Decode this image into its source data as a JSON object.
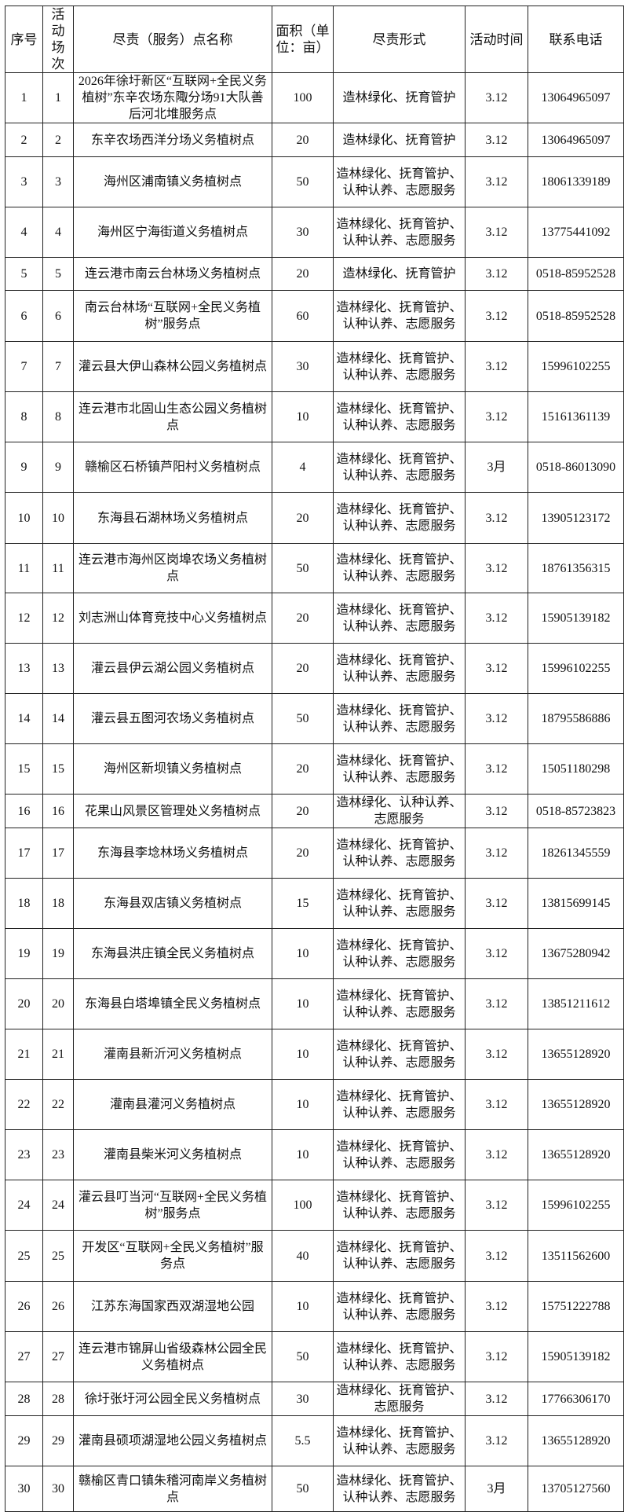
{
  "headers": [
    "序号",
    "活动场次",
    "尽责（服务）点名称",
    "面积（单位：亩）",
    "尽责形式",
    "活动时间",
    "联系电话"
  ],
  "rows": [
    [
      "1",
      "1",
      "2026年徐圩新区“互联网+全民义务植树”东辛农场东陬分场91大队善后河北堆服务点",
      "100",
      "造林绿化、抚育管护",
      "3.12",
      "13064965097"
    ],
    [
      "2",
      "2",
      "东辛农场西洋分场义务植树点",
      "20",
      "造林绿化、抚育管护",
      "3.12",
      "13064965097"
    ],
    [
      "3",
      "3",
      "海州区浦南镇义务植树点",
      "50",
      "造林绿化、抚育管护、认种认养、志愿服务",
      "3.12",
      "18061339189"
    ],
    [
      "4",
      "4",
      "海州区宁海街道义务植树点",
      "30",
      "造林绿化、抚育管护、认种认养、志愿服务",
      "3.12",
      "13775441092"
    ],
    [
      "5",
      "5",
      "连云港市南云台林场义务植树点",
      "20",
      "造林绿化、抚育管护",
      "3.12",
      "0518-85952528"
    ],
    [
      "6",
      "6",
      "南云台林场“互联网+全民义务植树”服务点",
      "60",
      "造林绿化、抚育管护、认种认养、志愿服务",
      "3.12",
      "0518-85952528"
    ],
    [
      "7",
      "7",
      "灌云县大伊山森林公园义务植树点",
      "30",
      "造林绿化、抚育管护、认种认养、志愿服务",
      "3.12",
      "15996102255"
    ],
    [
      "8",
      "8",
      "连云港市北固山生态公园义务植树点",
      "10",
      "造林绿化、抚育管护、认种认养、志愿服务",
      "3.12",
      "15161361139"
    ],
    [
      "9",
      "9",
      "赣榆区石桥镇芦阳村义务植树点",
      "4",
      "造林绿化、抚育管护、认种认养、志愿服务",
      "3月",
      "0518-86013090"
    ],
    [
      "10",
      "10",
      "东海县石湖林场义务植树点",
      "20",
      "造林绿化、抚育管护、认种认养、志愿服务",
      "3.12",
      "13905123172"
    ],
    [
      "11",
      "11",
      "连云港市海州区岗埠农场义务植树点",
      "50",
      "造林绿化、抚育管护、认种认养、志愿服务",
      "3.12",
      "18761356315"
    ],
    [
      "12",
      "12",
      "刘志洲山体育竞技中心义务植树点",
      "20",
      "造林绿化、抚育管护、认种认养、志愿服务",
      "3.12",
      "15905139182"
    ],
    [
      "13",
      "13",
      "灌云县伊云湖公园义务植树点",
      "20",
      "造林绿化、抚育管护、认种认养、志愿服务",
      "3.12",
      "15996102255"
    ],
    [
      "14",
      "14",
      "灌云县五图河农场义务植树点",
      "50",
      "造林绿化、抚育管护、认种认养、志愿服务",
      "3.12",
      "18795586886"
    ],
    [
      "15",
      "15",
      "海州区新坝镇义务植树点",
      "20",
      "造林绿化、抚育管护、认种认养、志愿服务",
      "3.12",
      "15051180298"
    ],
    [
      "16",
      "16",
      "花果山风景区管理处义务植树点",
      "20",
      "造林绿化、认种认养、志愿服务",
      "3.12",
      "0518-85723823"
    ],
    [
      "17",
      "17",
      "东海县李埝林场义务植树点",
      "20",
      "造林绿化、抚育管护、认种认养、志愿服务",
      "3.12",
      "18261345559"
    ],
    [
      "18",
      "18",
      "东海县双店镇义务植树点",
      "15",
      "造林绿化、抚育管护、认种认养、志愿服务",
      "3.12",
      "13815699145"
    ],
    [
      "19",
      "19",
      "东海县洪庄镇全民义务植树点",
      "10",
      "造林绿化、抚育管护、认种认养、志愿服务",
      "3.12",
      "13675280942"
    ],
    [
      "20",
      "20",
      "东海县白塔埠镇全民义务植树点",
      "10",
      "造林绿化、抚育管护、认种认养、志愿服务",
      "3.12",
      "13851211612"
    ],
    [
      "21",
      "21",
      "灌南县新沂河义务植树点",
      "10",
      "造林绿化、抚育管护、认种认养、志愿服务",
      "3.12",
      "13655128920"
    ],
    [
      "22",
      "22",
      "灌南县灌河义务植树点",
      "10",
      "造林绿化、抚育管护、认种认养、志愿服务",
      "3.12",
      "13655128920"
    ],
    [
      "23",
      "23",
      "灌南县柴米河义务植树点",
      "10",
      "造林绿化、抚育管护、认种认养、志愿服务",
      "3.12",
      "13655128920"
    ],
    [
      "24",
      "24",
      "灌云县叮当河“互联网+全民义务植树”服务点",
      "100",
      "造林绿化、抚育管护、认种认养、志愿服务",
      "3.12",
      "15996102255"
    ],
    [
      "25",
      "25",
      "开发区“互联网+全民义务植树”服务点",
      "40",
      "造林绿化、抚育管护、认种认养、志愿服务",
      "3.12",
      "13511562600"
    ],
    [
      "26",
      "26",
      "江苏东海国家西双湖湿地公园",
      "10",
      "造林绿化、抚育管护、认种认养、志愿服务",
      "3.12",
      "15751222788"
    ],
    [
      "27",
      "27",
      "连云港市锦屏山省级森林公园全民义务植树点",
      "50",
      "造林绿化、抚育管护、认种认养、志愿服务",
      "3.12",
      "15905139182"
    ],
    [
      "28",
      "28",
      "徐圩张圩河公园全民义务植树点",
      "30",
      "造林绿化、抚育管护、志愿服务",
      "3.12",
      "17766306170"
    ],
    [
      "29",
      "29",
      "灌南县硕项湖湿地公园义务植树点",
      "5.5",
      "造林绿化、抚育管护、认种认养、志愿服务",
      "3.12",
      "13655128920"
    ],
    [
      "30",
      "30",
      "赣榆区青口镇朱稽河南岸义务植树点",
      "50",
      "造林绿化、抚育管护、认种认养、志愿服务",
      "3月",
      "13705127560"
    ]
  ]
}
